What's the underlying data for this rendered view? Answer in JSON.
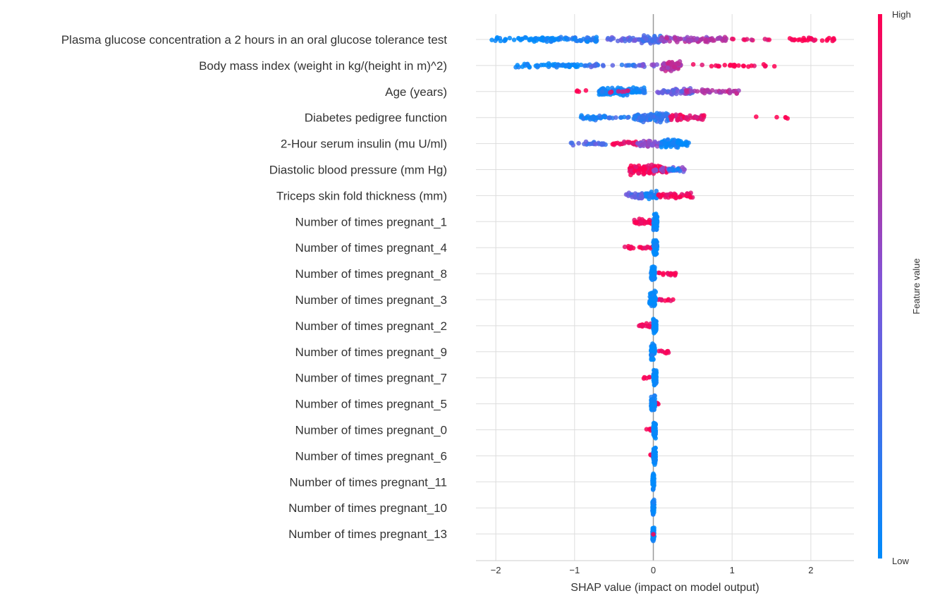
{
  "chart_data": {
    "type": "scatter",
    "subtype": "beeswarm",
    "xlabel": "SHAP value (impact on model output)",
    "xlim": [
      -2.2,
      2.55
    ],
    "xticks": [
      -2,
      -1,
      0,
      1,
      2
    ],
    "xtick_labels": [
      "−2",
      "−1",
      "0",
      "1",
      "2"
    ],
    "grid": true,
    "colorbar": {
      "label": "Feature value",
      "high": "High",
      "low": "Low",
      "low_color": "#008bfb",
      "mid_color": "#7f56d9",
      "high_color": "#ff0052"
    },
    "features": [
      {
        "name": "Plasma glucose concentration a 2 hours in an oral glucose tolerance test",
        "groups": [
          [
            -2.05,
            -1.2,
            0,
            60
          ],
          [
            -1.2,
            -0.7,
            0.1,
            40
          ],
          [
            -0.6,
            0.0,
            0.4,
            35
          ],
          [
            -0.15,
            0.1,
            0.3,
            45
          ],
          [
            0.1,
            0.95,
            0.65,
            75
          ],
          [
            1.0,
            1.7,
            0.9,
            10
          ],
          [
            1.7,
            2.3,
            1,
            30
          ]
        ]
      },
      {
        "name": "Body mass index (weight in kg/(height in m)^2)",
        "groups": [
          [
            -1.75,
            -0.9,
            0,
            50
          ],
          [
            -0.9,
            -0.1,
            0.25,
            25
          ],
          [
            -0.2,
            0.05,
            0.5,
            10
          ],
          [
            0.1,
            0.35,
            0.7,
            65
          ],
          [
            0.5,
            1.6,
            1,
            25
          ]
        ]
      },
      {
        "name": "Age (years)",
        "groups": [
          [
            -1.0,
            -0.8,
            1,
            4
          ],
          [
            -0.7,
            -0.1,
            0.05,
            95
          ],
          [
            -0.6,
            -0.3,
            0.9,
            6
          ],
          [
            0.05,
            0.5,
            0.4,
            50
          ],
          [
            0.4,
            1.1,
            0.7,
            40
          ]
        ]
      },
      {
        "name": "Diabetes pedigree function",
        "groups": [
          [
            -0.95,
            -0.6,
            0.1,
            30
          ],
          [
            -0.6,
            -0.3,
            0.2,
            10
          ],
          [
            -0.25,
            0.2,
            0.2,
            85
          ],
          [
            0.2,
            0.65,
            0.9,
            50
          ],
          [
            1.3,
            1.75,
            1,
            5
          ]
        ]
      },
      {
        "name": "2-Hour serum insulin (mu U/ml)",
        "groups": [
          [
            -1.05,
            -0.6,
            0.3,
            25
          ],
          [
            -0.55,
            -0.05,
            0.95,
            30
          ],
          [
            -0.2,
            0.15,
            0.55,
            40
          ],
          [
            0.1,
            0.45,
            0,
            65
          ]
        ]
      },
      {
        "name": "Diastolic blood pressure (mm Hg)",
        "groups": [
          [
            -0.3,
            0.2,
            0.95,
            110
          ],
          [
            0.0,
            0.4,
            0.5,
            25
          ],
          [
            0.2,
            0.4,
            0.1,
            8
          ]
        ]
      },
      {
        "name": "Triceps skin fold thickness (mm)",
        "groups": [
          [
            -0.35,
            0.0,
            0.35,
            40
          ],
          [
            -0.1,
            0.05,
            0.1,
            30
          ],
          [
            0.05,
            0.5,
            0.95,
            40
          ]
        ]
      },
      {
        "name": "Number of times pregnant_1",
        "groups": [
          [
            -0.25,
            0.0,
            1,
            25
          ],
          [
            0.0,
            0.05,
            0,
            60
          ]
        ]
      },
      {
        "name": "Number of times pregnant_4",
        "groups": [
          [
            -0.38,
            0.0,
            1,
            20
          ],
          [
            0.0,
            0.05,
            0,
            60
          ]
        ]
      },
      {
        "name": "Number of times pregnant_8",
        "groups": [
          [
            0.05,
            0.3,
            1,
            15
          ],
          [
            -0.03,
            0.02,
            0,
            60
          ]
        ]
      },
      {
        "name": "Number of times pregnant_3",
        "groups": [
          [
            0.05,
            0.25,
            1,
            10
          ],
          [
            -0.05,
            0.03,
            0,
            60
          ]
        ]
      },
      {
        "name": "Number of times pregnant_2",
        "groups": [
          [
            -0.2,
            0.0,
            1,
            15
          ],
          [
            0.0,
            0.04,
            0,
            60
          ]
        ]
      },
      {
        "name": "Number of times pregnant_9",
        "groups": [
          [
            0.05,
            0.2,
            1,
            8
          ],
          [
            -0.03,
            0.02,
            0,
            60
          ]
        ]
      },
      {
        "name": "Number of times pregnant_7",
        "groups": [
          [
            -0.15,
            0.0,
            1,
            6
          ],
          [
            0.0,
            0.04,
            0,
            60
          ]
        ]
      },
      {
        "name": "Number of times pregnant_5",
        "groups": [
          [
            0.02,
            0.08,
            1,
            4
          ],
          [
            -0.03,
            0.02,
            0,
            60
          ]
        ]
      },
      {
        "name": "Number of times pregnant_0",
        "groups": [
          [
            -0.1,
            0.0,
            1,
            5
          ],
          [
            0.0,
            0.03,
            0,
            60
          ]
        ]
      },
      {
        "name": "Number of times pregnant_6",
        "groups": [
          [
            -0.08,
            0.0,
            1,
            4
          ],
          [
            0.0,
            0.03,
            0,
            60
          ]
        ]
      },
      {
        "name": "Number of times pregnant_11",
        "groups": [
          [
            -0.01,
            0.01,
            0,
            60
          ]
        ]
      },
      {
        "name": "Number of times pregnant_10",
        "groups": [
          [
            -0.01,
            0.01,
            0,
            60
          ]
        ]
      },
      {
        "name": "Number of times pregnant_13",
        "groups": [
          [
            -0.01,
            0.01,
            0,
            60
          ],
          [
            0.0,
            0.0,
            1,
            1
          ]
        ]
      }
    ]
  }
}
